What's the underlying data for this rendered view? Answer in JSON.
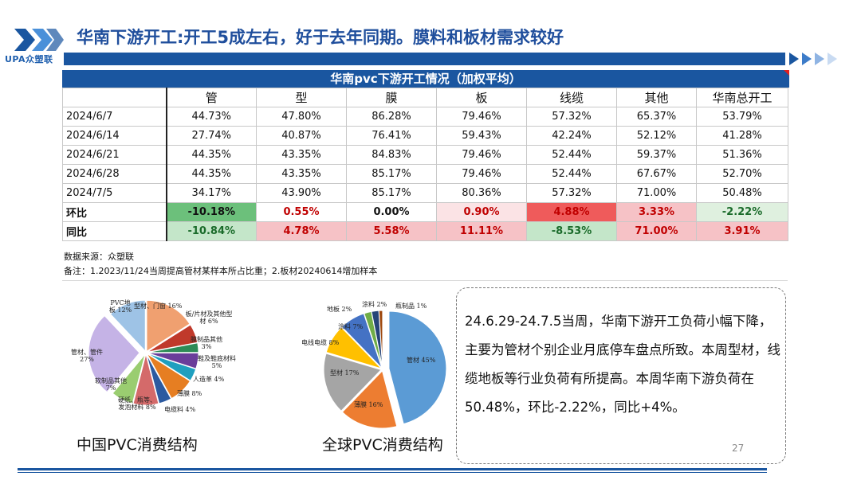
{
  "header": {
    "logo_text": "UPA众塑联",
    "title": "华南下游开工:开工5成左右，好于去年同期。膜料和板材需求较好"
  },
  "table": {
    "title": "华南pvc下游开工情况（加权平均）",
    "columns": [
      "管",
      "型",
      "膜",
      "板",
      "线缆",
      "其他",
      "华南总开工"
    ],
    "rows": [
      {
        "label": "2024/6/7",
        "values": [
          "44.73%",
          "47.80%",
          "86.28%",
          "79.46%",
          "57.32%",
          "65.37%",
          "53.79%"
        ]
      },
      {
        "label": "2024/6/14",
        "values": [
          "27.74%",
          "40.87%",
          "76.41%",
          "59.43%",
          "42.24%",
          "52.12%",
          "41.28%"
        ]
      },
      {
        "label": "2024/6/21",
        "values": [
          "44.35%",
          "43.35%",
          "84.83%",
          "79.46%",
          "52.44%",
          "59.37%",
          "51.36%"
        ]
      },
      {
        "label": "2024/6/28",
        "values": [
          "44.35%",
          "43.35%",
          "85.17%",
          "79.46%",
          "52.44%",
          "67.67%",
          "52.70%"
        ]
      },
      {
        "label": "2024/7/5",
        "values": [
          "34.17%",
          "43.90%",
          "85.17%",
          "80.36%",
          "57.32%",
          "71.00%",
          "50.48%"
        ]
      },
      {
        "label": "环比",
        "values": [
          "-10.18%",
          "0.55%",
          "0.00%",
          "0.90%",
          "4.88%",
          "3.33%",
          "-2.22%"
        ]
      },
      {
        "label": "同比",
        "values": [
          "-10.84%",
          "4.78%",
          "5.58%",
          "11.11%",
          "-8.53%",
          "71.00%",
          "3.91%"
        ]
      }
    ],
    "source": "数据来源：众塑联",
    "note": "备注：1.2023/11/24当周提高管材某样本所占比重；2.板材20240614增加样本"
  },
  "colors": {
    "brand_blue": "#1a56a0",
    "positive_green": "#6cc07b",
    "negative_red": "#ef5b5b"
  },
  "pie_china": {
    "caption": "中国PVC消费结构",
    "slices": [
      {
        "label": "型材、门窗 16%",
        "value": 16,
        "color": "#f0a070"
      },
      {
        "label": "板/片材及其他型材 6%",
        "value": 6,
        "color": "#c0392b"
      },
      {
        "label": "膜制品其他 3%",
        "value": 3,
        "color": "#2e8b57"
      },
      {
        "label": "鞋及鞋底材料 5%",
        "value": 5,
        "color": "#6a3d9a"
      },
      {
        "label": "人造革 4%",
        "value": 4,
        "color": "#1f9fbf"
      },
      {
        "label": "薄膜 8%",
        "value": 8,
        "color": "#e67e22"
      },
      {
        "label": "电缆料 4%",
        "value": 4,
        "color": "#2c5aa0"
      },
      {
        "label": "硬纸、瓶等、发泡材料 8%",
        "value": 8,
        "color": "#d46a6a"
      },
      {
        "label": "软制品其他 7%",
        "value": 7,
        "color": "#9acd70"
      },
      {
        "label": "管材、管件 27%",
        "value": 27,
        "color": "#c5b3e6"
      },
      {
        "label": "PVC地板 12%",
        "value": 12,
        "color": "#9ec3e6"
      }
    ]
  },
  "pie_global": {
    "caption": "全球PVC消费结构",
    "slices": [
      {
        "label": "管材 45%",
        "value": 45,
        "color": "#5b9bd5"
      },
      {
        "label": "薄膜 16%",
        "value": 16,
        "color": "#ed7d31"
      },
      {
        "label": "型材 17%",
        "value": 17,
        "color": "#a5a5a5"
      },
      {
        "label": "电线电缆 8%",
        "value": 8,
        "color": "#ffc000"
      },
      {
        "label": "涂料 7%",
        "value": 7,
        "color": "#4472c4"
      },
      {
        "label": "地板 2%",
        "value": 2,
        "color": "#70ad47"
      },
      {
        "label": "涂料 2%",
        "value": 2,
        "color": "#264478"
      },
      {
        "label": "瓶制品 1%",
        "value": 1,
        "color": "#9e480e"
      }
    ]
  },
  "summary": {
    "text": "24.6.29-24.7.5当周，华南下游开工负荷小幅下降，主要为管材个别企业月底停车盘点所致。本周型材，线缆地板等行业负荷有所提高。本周华南下游负荷在50.48%，环比-2.22%，同比+4%。"
  },
  "page_number": "27"
}
